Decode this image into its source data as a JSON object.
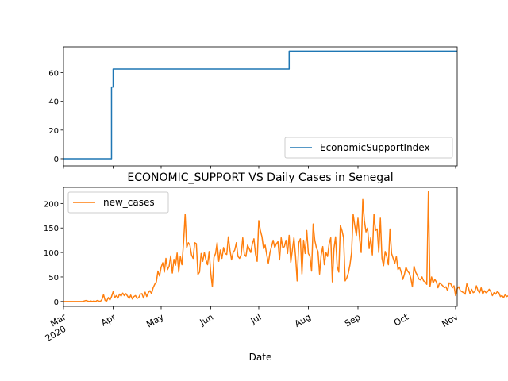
{
  "chart_data": [
    {
      "type": "line",
      "title": "",
      "xlabel": "",
      "ylabel": "",
      "xlim": [
        "2020-03-01",
        "2020-11-02"
      ],
      "ylim": [
        -5,
        78
      ],
      "yticks": [
        0,
        20,
        40,
        60
      ],
      "legend": "lower-right",
      "grid": false,
      "series": [
        {
          "name": "EconomicSupportIndex",
          "color": "#1f77b4",
          "step_points": [
            [
              "2020-03-01",
              0
            ],
            [
              "2020-03-31",
              0
            ],
            [
              "2020-03-31",
              50
            ],
            [
              "2020-04-01",
              50
            ],
            [
              "2020-04-01",
              62.5
            ],
            [
              "2020-07-20",
              62.5
            ],
            [
              "2020-07-20",
              75
            ],
            [
              "2020-11-02",
              75
            ]
          ]
        }
      ]
    },
    {
      "type": "line",
      "title": "ECONOMIC_SUPPORT VS Daily Cases in Senegal",
      "xlabel": "Date",
      "ylabel": "",
      "xlim": [
        "2020-03-01",
        "2020-11-02"
      ],
      "ylim": [
        -10,
        233
      ],
      "yticks": [
        0,
        50,
        100,
        150,
        200
      ],
      "xtick_labels": [
        {
          "date": "2020-03-01",
          "label": "Mar",
          "sublabel": "2020"
        },
        {
          "date": "2020-04-01",
          "label": "Apr"
        },
        {
          "date": "2020-05-01",
          "label": "May"
        },
        {
          "date": "2020-06-01",
          "label": "Jun"
        },
        {
          "date": "2020-07-01",
          "label": "Jul"
        },
        {
          "date": "2020-08-01",
          "label": "Aug"
        },
        {
          "date": "2020-09-01",
          "label": "Sep"
        },
        {
          "date": "2020-10-01",
          "label": "Oct"
        },
        {
          "date": "2020-11-01",
          "label": "Nov"
        }
      ],
      "legend": "upper-left",
      "grid": false,
      "series": [
        {
          "name": "new_cases",
          "color": "#ff7f0e",
          "start_date": "2020-03-01",
          "daily_values": [
            0,
            0,
            0,
            0,
            0,
            0,
            0,
            0,
            0,
            0,
            0,
            0,
            0,
            1,
            2,
            1,
            0,
            1,
            0,
            1,
            0,
            2,
            1,
            0,
            4,
            14,
            2,
            1,
            8,
            3,
            10,
            20,
            8,
            12,
            7,
            15,
            11,
            17,
            12,
            16,
            11,
            6,
            13,
            5,
            10,
            12,
            6,
            8,
            15,
            16,
            7,
            19,
            10,
            18,
            22,
            16,
            28,
            35,
            40,
            62,
            52,
            70,
            79,
            60,
            88,
            65,
            72,
            93,
            58,
            86,
            74,
            99,
            60,
            92,
            75,
            120,
            178,
            110,
            120,
            115,
            95,
            88,
            120,
            118,
            55,
            60,
            98,
            82,
            100,
            85,
            75,
            102,
            58,
            30,
            90,
            98,
            120,
            82,
            105,
            88,
            110,
            98,
            96,
            132,
            105,
            85,
            100,
            105,
            120,
            92,
            88,
            95,
            130,
            96,
            92,
            115,
            108,
            100,
            118,
            128,
            96,
            82,
            165,
            145,
            132,
            108,
            115,
            95,
            78,
            100,
            112,
            125,
            110,
            118,
            122,
            85,
            130,
            110,
            112,
            125,
            98,
            135,
            80,
            105,
            130,
            92,
            42,
            120,
            128,
            56,
            125,
            98,
            145,
            98,
            92,
            62,
            158,
            125,
            110,
            102,
            56,
            95,
            112,
            75,
            100,
            92,
            118,
            130,
            40,
            108,
            132,
            72,
            60,
            155,
            145,
            130,
            42,
            48,
            58,
            75,
            100,
            178,
            155,
            135,
            170,
            128,
            100,
            208,
            165,
            142,
            150,
            108,
            130,
            95,
            178,
            145,
            148,
            100,
            170,
            88,
            73,
            102,
            92,
            75,
            148,
            98,
            88,
            78,
            92,
            65,
            70,
            60,
            45,
            55,
            70,
            62,
            58,
            48,
            30,
            72,
            60,
            54,
            46,
            44,
            50,
            42,
            40,
            35,
            224,
            30,
            50,
            38,
            45,
            40,
            28,
            38,
            35,
            32,
            28,
            30,
            22,
            38,
            36,
            28,
            32,
            12,
            26,
            30,
            22,
            20,
            18,
            15,
            36,
            28,
            16,
            25,
            18,
            20,
            32,
            22,
            18,
            28,
            15,
            22,
            18,
            20,
            25,
            20,
            12,
            18,
            15,
            20,
            18,
            10,
            12,
            8,
            14,
            10,
            12,
            14,
            16,
            12,
            15
          ]
        }
      ]
    }
  ]
}
